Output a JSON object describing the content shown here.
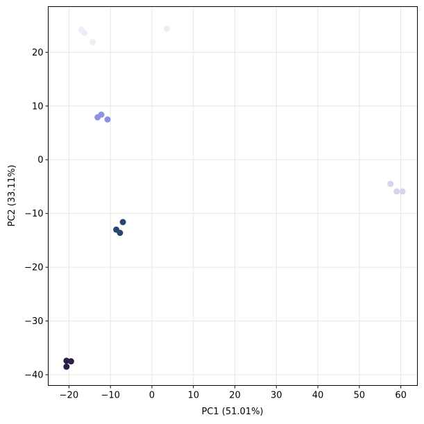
{
  "chart_data": {
    "type": "scatter",
    "title": "",
    "xlabel": "PC1 (51.01%)",
    "ylabel": "PC2 (33.11%)",
    "xlim": [
      -25,
      64
    ],
    "ylim": [
      -42,
      28.5
    ],
    "xticks": [
      -20,
      -10,
      0,
      10,
      20,
      30,
      40,
      50,
      60
    ],
    "yticks": [
      -40,
      -30,
      -20,
      -10,
      0,
      10,
      20
    ],
    "xtick_labels": [
      "−20",
      "−10",
      "0",
      "10",
      "20",
      "30",
      "40",
      "50",
      "60"
    ],
    "ytick_labels": [
      "−40",
      "−30",
      "−20",
      "−10",
      "0",
      "10",
      "20"
    ],
    "grid": true,
    "series": [
      {
        "color": "#eeedf7",
        "points": [
          [
            -17.0,
            24.2
          ],
          [
            -16.3,
            23.6
          ],
          [
            -14.3,
            21.9
          ],
          [
            3.6,
            24.4
          ]
        ]
      },
      {
        "color": "#8f92e0",
        "points": [
          [
            -13.1,
            7.9
          ],
          [
            -12.2,
            8.4
          ],
          [
            -10.7,
            7.5
          ]
        ]
      },
      {
        "color": "#d8d3ee",
        "points": [
          [
            57.5,
            -4.5
          ],
          [
            59.0,
            -5.9
          ],
          [
            60.4,
            -5.9
          ]
        ]
      },
      {
        "color": "#2c4570",
        "points": [
          [
            -7.0,
            -11.6
          ],
          [
            -8.6,
            -13.0
          ],
          [
            -7.7,
            -13.6
          ]
        ]
      },
      {
        "color": "#2d1e44",
        "points": [
          [
            -20.6,
            -37.4
          ],
          [
            -19.5,
            -37.5
          ],
          [
            -20.6,
            -38.5
          ]
        ]
      }
    ]
  }
}
